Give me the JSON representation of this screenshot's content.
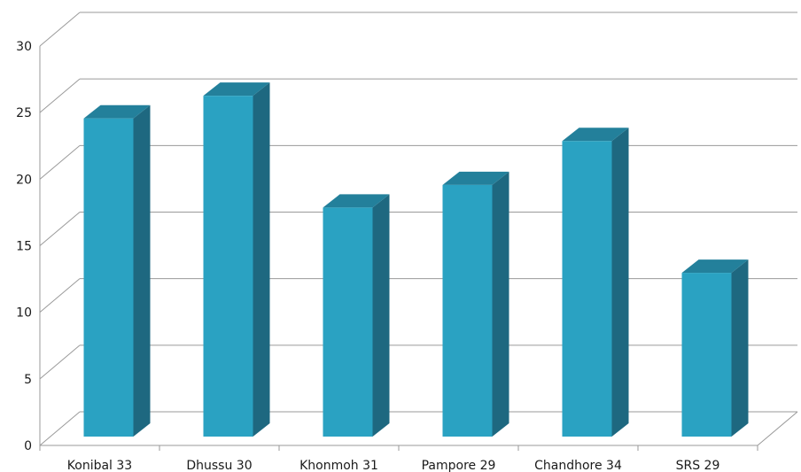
{
  "chart_data": {
    "type": "bar",
    "categories": [
      "Konibal 33",
      "Dhussu 30",
      "Khonmoh 31",
      "Pampore 29",
      "Chandhore 34",
      "SRS 29"
    ],
    "values": [
      23.9,
      25.6,
      17.2,
      18.9,
      22.2,
      12.3
    ],
    "ylim": [
      0,
      30
    ],
    "yticks": [
      0,
      5,
      10,
      15,
      20,
      25,
      30
    ],
    "grid": true,
    "three_d": true,
    "colors": {
      "bar_front": "#2aa2c2",
      "bar_side": "#1e6880",
      "bar_top": "#23809b",
      "grid": "#9a9a9a",
      "text": "#1a1a1a"
    }
  }
}
